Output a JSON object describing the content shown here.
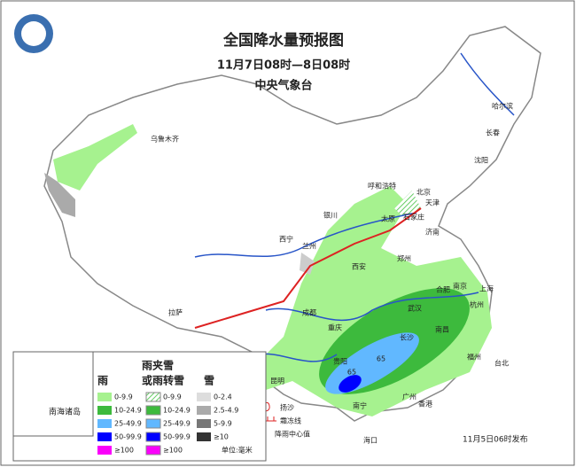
{
  "header": {
    "title": "全国降水量预报图",
    "time": "11月7日08时—8日08时",
    "agency": "中央气象台"
  },
  "cities": [
    "乌鲁木齐",
    "哈尔滨",
    "长春",
    "沈阳",
    "呼和浩特",
    "北京",
    "天津",
    "银川",
    "太原",
    "石家庄",
    "济南",
    "西宁",
    "兰州",
    "郑州",
    "西安",
    "合肥",
    "南京",
    "上海",
    "杭州",
    "武汉",
    "成都",
    "拉萨",
    "重庆",
    "长沙",
    "南昌",
    "贵阳",
    "福州",
    "台北",
    "昆明",
    "南宁",
    "广州",
    "香港",
    "海口"
  ],
  "centers": [
    65,
    65
  ],
  "inset": "南海诸岛",
  "legend": {
    "rain": {
      "title": "雨",
      "items": [
        "0-9.9",
        "10-24.9",
        "25-49.9",
        "50-99.9",
        "≥100"
      ]
    },
    "sleet": {
      "title_lines": [
        "雨夹雪",
        "或雨转雪"
      ],
      "items": [
        "0-9.9",
        "10-24.9",
        "25-49.9",
        "50-99.9",
        "≥100"
      ]
    },
    "snow": {
      "title": "雪",
      "items": [
        "0-2.4",
        "2.5-4.9",
        "5-9.9",
        "≥10"
      ]
    }
  },
  "symbols": {
    "sand": "扬沙",
    "frost": "霜冻线",
    "center": "降雨中心值"
  },
  "unit": "单位:毫米",
  "issued": "11月5日06时发布"
}
